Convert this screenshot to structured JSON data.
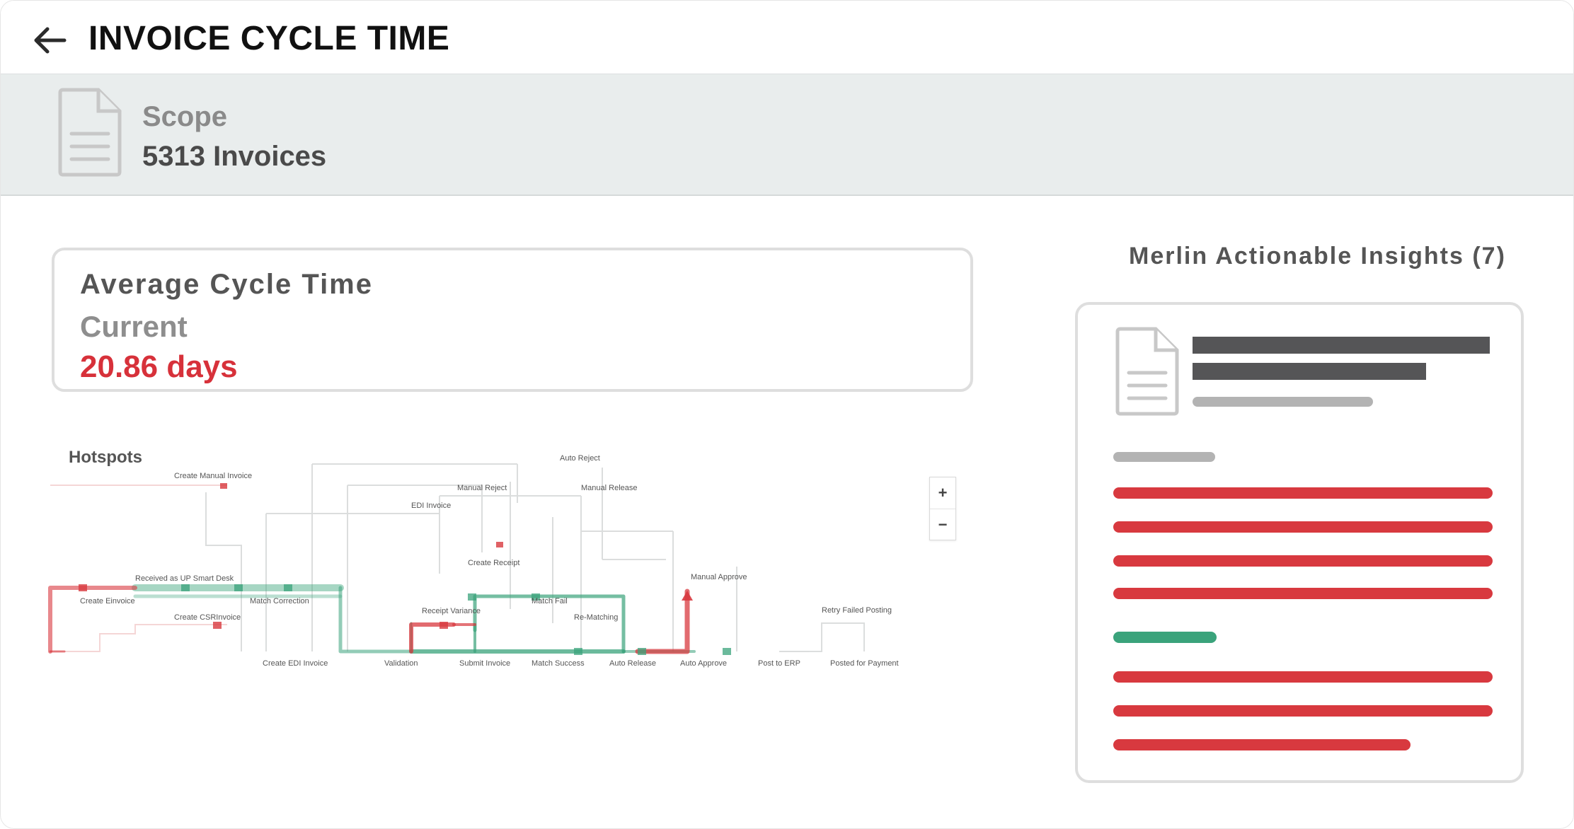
{
  "header": {
    "title": "INVOICE CYCLE TIME",
    "back_icon": "arrow-left-icon"
  },
  "scope": {
    "icon": "document-icon",
    "label": "Scope",
    "value": "5313 Invoices"
  },
  "metric": {
    "title": "Average Cycle Time",
    "subtitle": "Current",
    "value": "20.86 days",
    "value_color": "#d7313a"
  },
  "process_map": {
    "title": "Hotspots",
    "zoom_in": "+",
    "zoom_out": "−",
    "nodes": [
      "Auto Reject",
      "Create Manual Invoice",
      "Manual Reject",
      "Manual Release",
      "EDI Invoice",
      "Create Receipt",
      "Received as UP Smart Desk",
      "Create Einvoice",
      "Match Correction",
      "Match Fail",
      "Manual Approve",
      "Receipt Variance",
      "Re-Matching",
      "Create CSRInvoice",
      "Retry Failed Posting",
      "Create EDI Invoice",
      "Validation",
      "Submit Invoice",
      "Match Success",
      "Auto Release",
      "Auto Approve",
      "Post to ERP",
      "Posted for Payment"
    ],
    "hot_color": "#d8393f",
    "ok_color": "#3aa37b"
  },
  "insights": {
    "title": "Merlin Actionable Insights (7)",
    "count": 7,
    "icon": "document-icon",
    "accent_red": "#d8393f",
    "accent_green": "#3aa37b"
  }
}
